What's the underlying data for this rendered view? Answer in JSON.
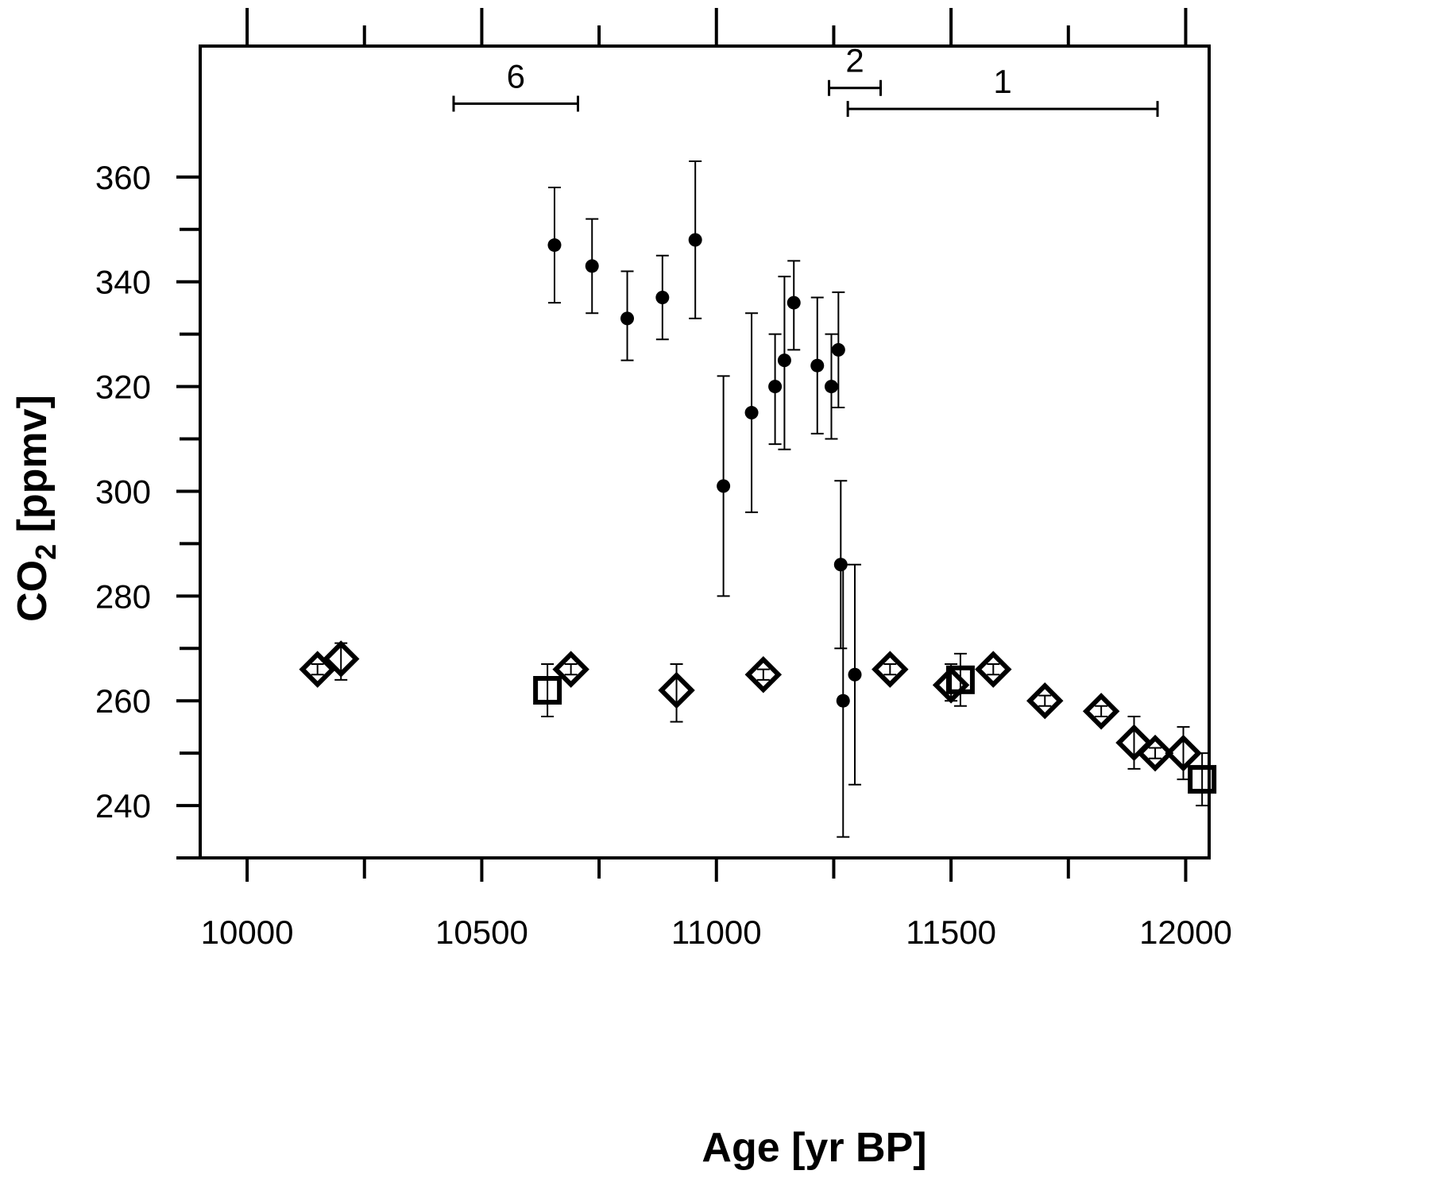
{
  "chart_data": {
    "type": "scatter",
    "title": "",
    "xlabel": "Age [yr BP]",
    "ylabel": {
      "main": "CO",
      "sub": "2",
      "tail": " [ppmv]"
    },
    "xlim": [
      9900,
      12050
    ],
    "ylim": [
      230,
      385
    ],
    "x_ticks": [
      10000,
      10500,
      11000,
      11500,
      12000
    ],
    "x_minor_ticks": [
      10250,
      10750,
      11250,
      11750
    ],
    "y_ticks": [
      240,
      260,
      280,
      300,
      320,
      340,
      360
    ],
    "y_minor_ticks": [
      250,
      270,
      290,
      310,
      330,
      350
    ],
    "grid": false,
    "series": [
      {
        "marker": "circle",
        "points": [
          {
            "x": 10655,
            "y": 347,
            "err_low": 336,
            "err_high": 358
          },
          {
            "x": 10735,
            "y": 343,
            "err_low": 334,
            "err_high": 352
          },
          {
            "x": 10810,
            "y": 333,
            "err_low": 325,
            "err_high": 342
          },
          {
            "x": 10885,
            "y": 337,
            "err_low": 329,
            "err_high": 345
          },
          {
            "x": 10955,
            "y": 348,
            "err_low": 333,
            "err_high": 363
          },
          {
            "x": 11015,
            "y": 301,
            "err_low": 280,
            "err_high": 322
          },
          {
            "x": 11075,
            "y": 315,
            "err_low": 296,
            "err_high": 334
          },
          {
            "x": 11125,
            "y": 320,
            "err_low": 309,
            "err_high": 330
          },
          {
            "x": 11145,
            "y": 325,
            "err_low": 308,
            "err_high": 341
          },
          {
            "x": 11165,
            "y": 336,
            "err_low": 327,
            "err_high": 344
          },
          {
            "x": 11215,
            "y": 324,
            "err_low": 311,
            "err_high": 337
          },
          {
            "x": 11245,
            "y": 320,
            "err_low": 310,
            "err_high": 330
          },
          {
            "x": 11260,
            "y": 327,
            "err_low": 316,
            "err_high": 338
          },
          {
            "x": 11265,
            "y": 286,
            "err_low": 270,
            "err_high": 302
          },
          {
            "x": 11270,
            "y": 260,
            "err_low": 234,
            "err_high": 286
          },
          {
            "x": 11295,
            "y": 265,
            "err_low": 244,
            "err_high": 286
          }
        ]
      },
      {
        "marker": "diamond",
        "points": [
          {
            "x": 10150,
            "y": 266,
            "err_low": 265,
            "err_high": 267
          },
          {
            "x": 10200,
            "y": 268,
            "err_low": 264,
            "err_high": 271
          },
          {
            "x": 10690,
            "y": 266,
            "err_low": 265,
            "err_high": 267
          },
          {
            "x": 10915,
            "y": 262,
            "err_low": 256,
            "err_high": 267
          },
          {
            "x": 11100,
            "y": 265,
            "err_low": 264,
            "err_high": 266
          },
          {
            "x": 11370,
            "y": 266,
            "err_low": 265,
            "err_high": 267
          },
          {
            "x": 11500,
            "y": 263,
            "err_low": 260,
            "err_high": 267
          },
          {
            "x": 11590,
            "y": 266,
            "err_low": 265,
            "err_high": 267
          },
          {
            "x": 11700,
            "y": 260,
            "err_low": 259,
            "err_high": 261
          },
          {
            "x": 11820,
            "y": 258,
            "err_low": 257,
            "err_high": 259
          },
          {
            "x": 11890,
            "y": 252,
            "err_low": 247,
            "err_high": 257
          },
          {
            "x": 11935,
            "y": 250,
            "err_low": 249,
            "err_high": 251
          },
          {
            "x": 11995,
            "y": 250,
            "err_low": 245,
            "err_high": 255
          }
        ]
      },
      {
        "marker": "square",
        "points": [
          {
            "x": 10640,
            "y": 262,
            "err_low": 257,
            "err_high": 267
          },
          {
            "x": 11520,
            "y": 264,
            "err_low": 259,
            "err_high": 269
          },
          {
            "x": 12035,
            "y": 245,
            "err_low": 240,
            "err_high": 250
          }
        ]
      }
    ],
    "intervals": [
      {
        "label": "6",
        "x_start": 10440,
        "x_end": 10705,
        "y": 374
      },
      {
        "label": "2",
        "x_start": 11240,
        "x_end": 11350,
        "y": 377
      },
      {
        "label": "1",
        "x_start": 11280,
        "x_end": 11940,
        "y": 373
      }
    ]
  }
}
